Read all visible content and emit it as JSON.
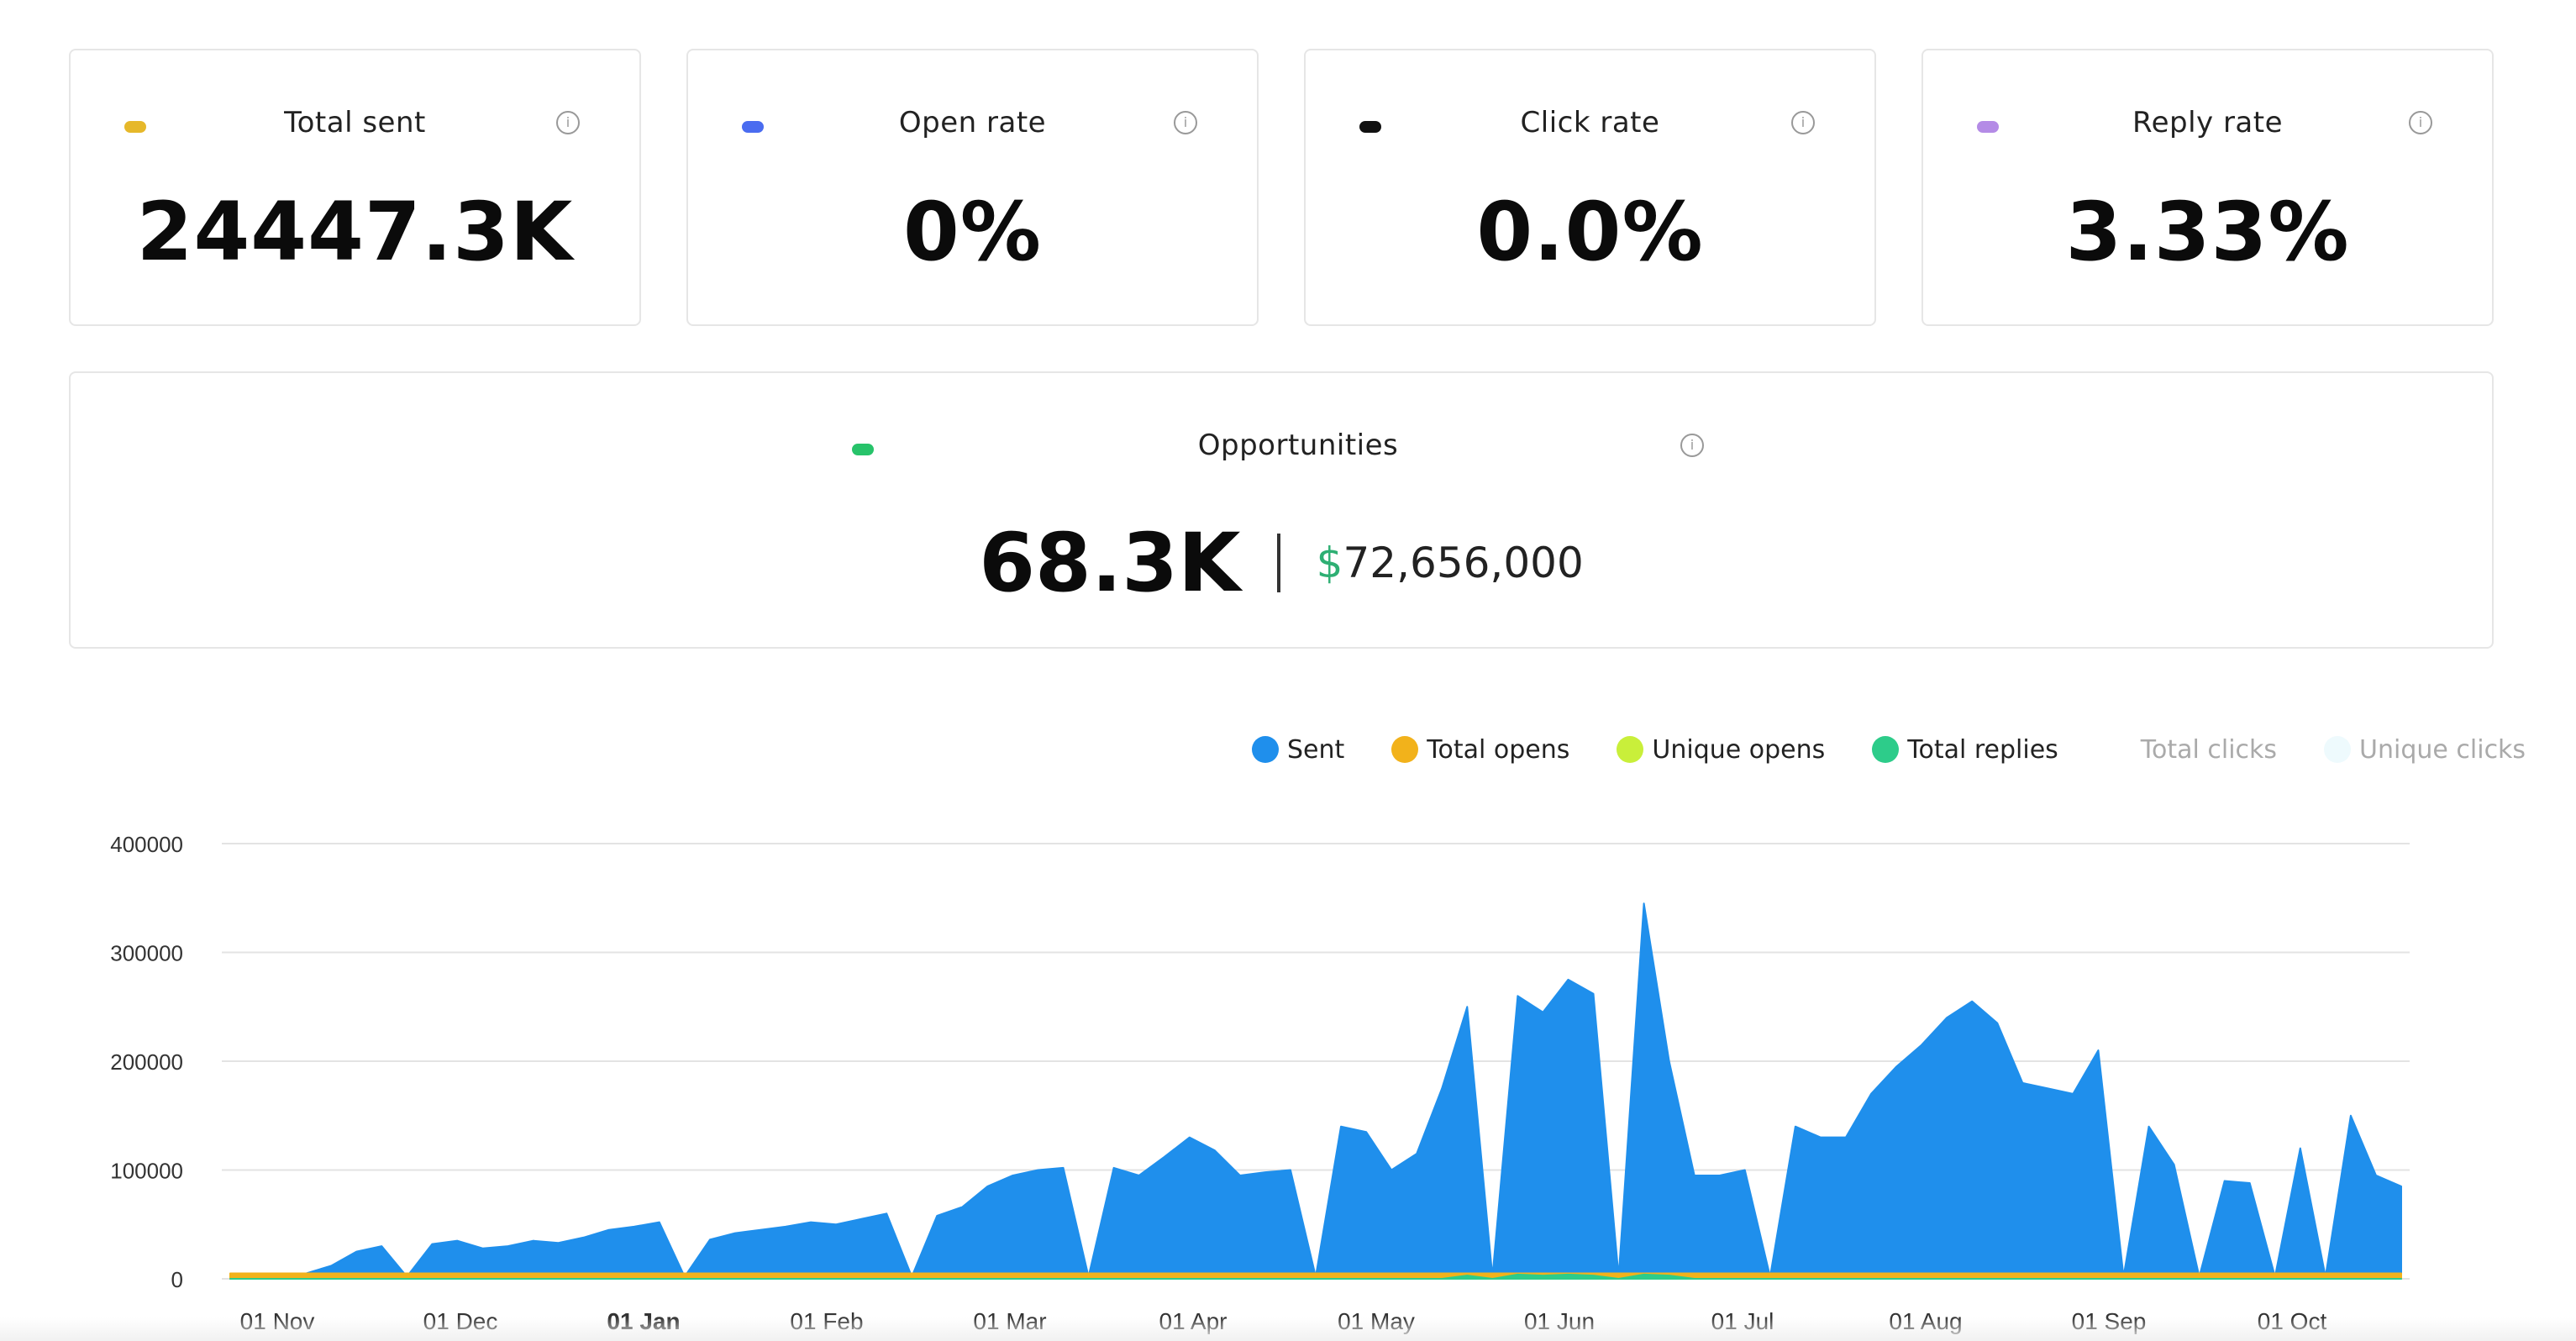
{
  "stats": [
    {
      "title": "Total sent",
      "value": "24447.3K",
      "dot": "#e6b82a"
    },
    {
      "title": "Open rate",
      "value": "0%",
      "dot": "#4a6cf0"
    },
    {
      "title": "Click rate",
      "value": "0.0%",
      "dot": "#111111"
    },
    {
      "title": "Reply rate",
      "value": "3.33%",
      "dot": "#b48be6"
    }
  ],
  "opportunities": {
    "title": "Opportunities",
    "count": "68.3K",
    "currency": "$",
    "amount": "72,656,000",
    "dot": "#27c36a"
  },
  "info_icon": "info-icon",
  "legend": [
    {
      "name": "Sent",
      "color": "#1f8fec"
    },
    {
      "name": "Total opens",
      "color": "#f2b21b"
    },
    {
      "name": "Unique opens",
      "color": "#c9ef3a"
    },
    {
      "name": "Total replies",
      "color": "#2dcc8a"
    },
    {
      "name": "Total clicks",
      "color": "#ffffff"
    },
    {
      "name": "Unique clicks",
      "color": "#eefafd"
    }
  ],
  "chart_data": {
    "type": "area",
    "y_ticks": [
      "400000",
      "300000",
      "200000",
      "100000",
      "0"
    ],
    "ylim": [
      0,
      400000
    ],
    "x_ticks": [
      "01 Nov",
      "01 Dec",
      "01 Jan",
      "01 Feb",
      "01 Mar",
      "01 Apr",
      "01 May",
      "01 Jun",
      "01 Jul",
      "01 Aug",
      "01 Sep",
      "01 Oct"
    ],
    "grid": true,
    "legend_position": "top-right",
    "series": [
      {
        "name": "Sent",
        "color": "#1f8fec",
        "weekly_values": [
          0,
          0,
          3000,
          5000,
          12000,
          25000,
          30000,
          2000,
          32000,
          35000,
          28000,
          30000,
          35000,
          33000,
          38000,
          45000,
          48000,
          52000,
          2000,
          36000,
          42000,
          45000,
          48000,
          52000,
          50000,
          55000,
          60000,
          2000,
          58000,
          66000,
          85000,
          95000,
          100000,
          102000,
          2000,
          102000,
          95000,
          112000,
          130000,
          118000,
          95000,
          98000,
          100000,
          2000,
          140000,
          135000,
          100000,
          115000,
          175000,
          250000,
          2000,
          260000,
          245000,
          275000,
          262000,
          2000,
          345000,
          200000,
          95000,
          95000,
          100000,
          2000,
          140000,
          130000,
          130000,
          170000,
          195000,
          215000,
          240000,
          255000,
          235000,
          180000,
          175000,
          170000,
          210000,
          2000,
          140000,
          105000,
          2000,
          90000,
          88000,
          2000,
          120000,
          2000,
          150000,
          95000,
          85000
        ]
      },
      {
        "name": "Total opens",
        "color": "#f2b21b",
        "weekly_values": [
          5000,
          5000,
          5000,
          5000,
          5000,
          5000,
          5000,
          5000,
          5000,
          5000,
          5000,
          5000,
          5000,
          5000,
          5000,
          5000,
          5000,
          5000,
          5000,
          5000,
          5000,
          5000,
          5000,
          5000,
          5000,
          5000,
          5000,
          5000,
          5000,
          5000,
          5000,
          5000,
          5000,
          5000,
          5000,
          5000,
          5000,
          5000,
          5000,
          5000,
          5000,
          5000,
          5000,
          5000,
          5000,
          5000,
          5000,
          5000,
          5000,
          5000,
          5000,
          5000,
          5000,
          5000,
          5000,
          5000,
          5000,
          5000,
          5000,
          5000,
          5000,
          5000,
          5000,
          5000,
          5000,
          5000,
          5000,
          5000,
          5000,
          5000,
          5000,
          5000,
          5000,
          5000,
          5000,
          5000,
          5000,
          5000,
          5000,
          5000,
          5000,
          5000,
          5000,
          5000,
          5000,
          5000,
          5000
        ]
      },
      {
        "name": "Total replies",
        "color": "#2dcc8a",
        "weekly_values": [
          0,
          0,
          0,
          0,
          0,
          0,
          0,
          0,
          0,
          0,
          0,
          0,
          0,
          0,
          0,
          0,
          0,
          0,
          0,
          0,
          0,
          0,
          0,
          0,
          0,
          0,
          0,
          0,
          0,
          0,
          0,
          0,
          0,
          0,
          0,
          0,
          0,
          0,
          0,
          0,
          0,
          0,
          0,
          0,
          0,
          0,
          0,
          0,
          0,
          3000,
          0,
          4000,
          3000,
          4000,
          3000,
          0,
          4000,
          3000,
          0,
          0,
          0,
          0,
          0,
          0,
          0,
          0,
          0,
          0,
          0,
          0,
          0,
          0,
          0,
          0,
          0,
          0,
          0,
          0,
          0,
          0,
          0,
          0,
          0,
          0,
          0,
          0,
          0
        ]
      }
    ]
  }
}
